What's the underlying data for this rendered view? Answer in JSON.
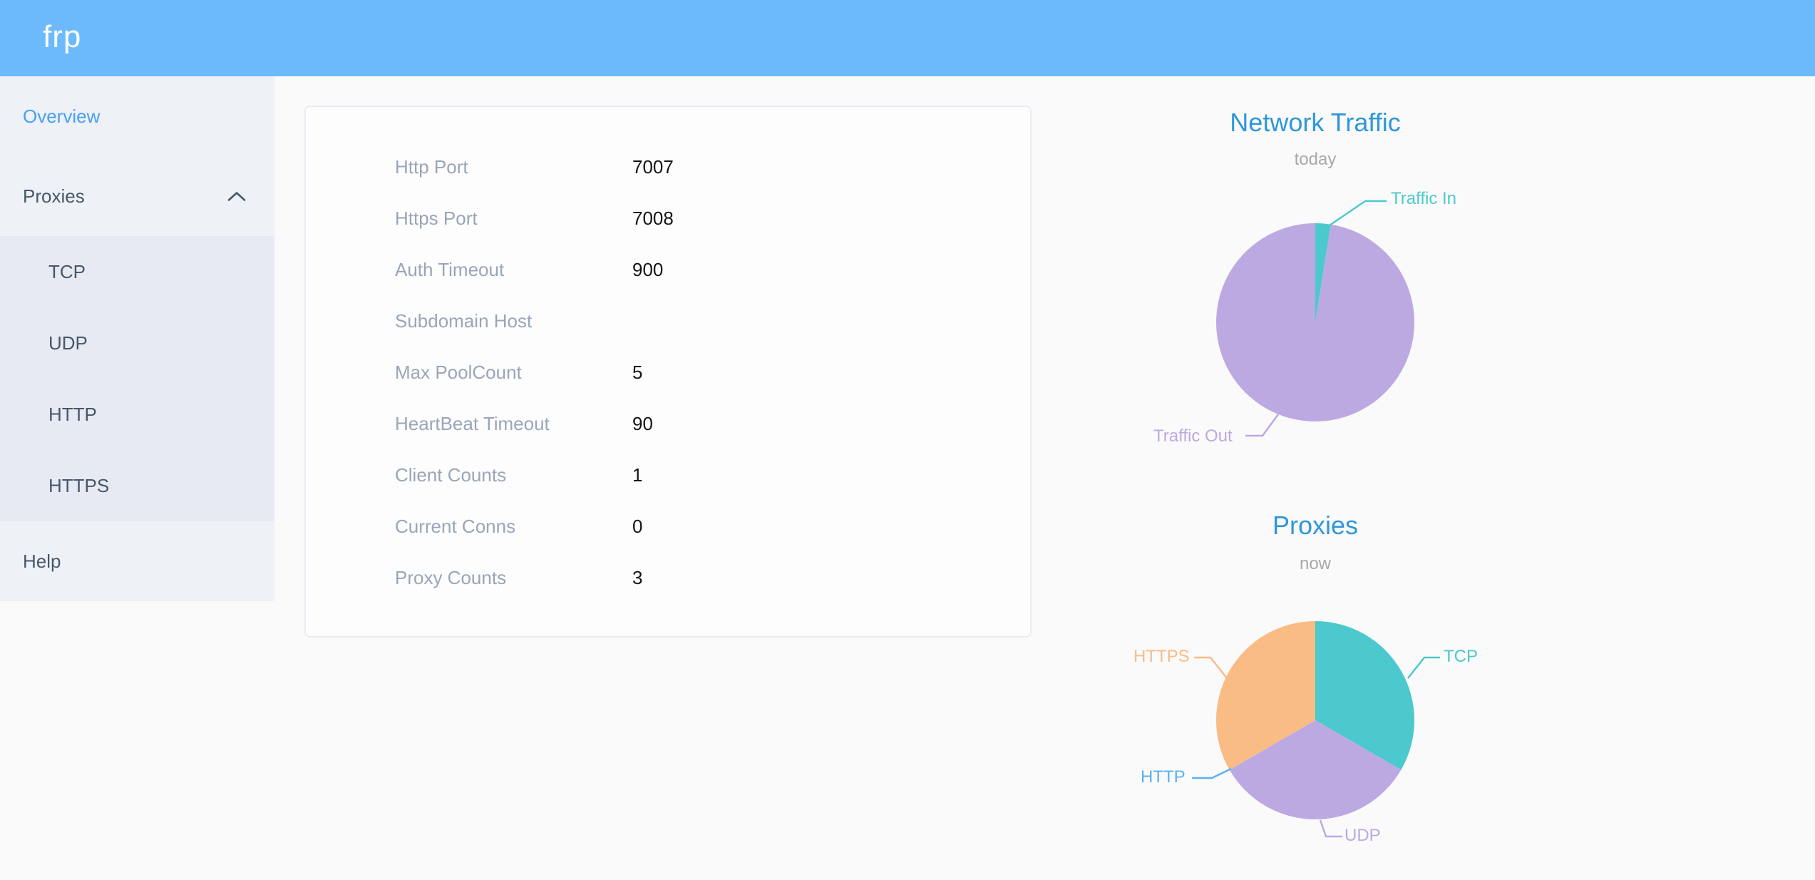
{
  "header": {
    "logo": "frp"
  },
  "sidebar": {
    "items": [
      {
        "label": "Overview",
        "active": true
      },
      {
        "label": "Proxies",
        "active": false,
        "expanded": true
      },
      {
        "label": "Help",
        "active": false
      }
    ],
    "proxies_submenu": [
      "TCP",
      "UDP",
      "HTTP",
      "HTTPS"
    ]
  },
  "overview_card": {
    "rows": [
      {
        "label": "Http Port",
        "value": "7007"
      },
      {
        "label": "Https Port",
        "value": "7008"
      },
      {
        "label": "Auth Timeout",
        "value": "900"
      },
      {
        "label": "Subdomain Host",
        "value": ""
      },
      {
        "label": "Max PoolCount",
        "value": "5"
      },
      {
        "label": "HeartBeat Timeout",
        "value": "90"
      },
      {
        "label": "Client Counts",
        "value": "1"
      },
      {
        "label": "Current Conns",
        "value": "0"
      },
      {
        "label": "Proxy Counts",
        "value": "3"
      }
    ]
  },
  "chart_data": [
    {
      "type": "pie",
      "title": "Network Traffic",
      "subtitle": "today",
      "legend_position": "callout-labels",
      "slices": [
        {
          "label": "Traffic In",
          "value": 2.5,
          "color": "#4bc9cd"
        },
        {
          "label": "Traffic Out",
          "value": 97.5,
          "color": "#bda9e2"
        }
      ]
    },
    {
      "type": "pie",
      "title": "Proxies",
      "subtitle": "now",
      "legend_position": "callout-labels",
      "slices": [
        {
          "label": "TCP",
          "value": 1,
          "color": "#4bc9cd"
        },
        {
          "label": "UDP",
          "value": 1,
          "color": "#bda9e2"
        },
        {
          "label": "HTTP",
          "value": 0,
          "color": "#5ab1ef"
        },
        {
          "label": "HTTPS",
          "value": 1,
          "color": "#f9bc85"
        }
      ]
    }
  ],
  "colors": {
    "header_bg": "#6cbafb",
    "sidebar_bg": "#eef1f6",
    "submenu_bg": "#e7eaf3",
    "sidebar_text": "#48576a",
    "active_link": "#489ff7",
    "content_bg": "#fafafa",
    "card_bg": "#fdfdfe",
    "card_border": "#e9ecf5",
    "label_gray": "#9aa5b8",
    "value_black": "#141416",
    "chart_title_blue": "#2f97d9",
    "chart_subtitle_gray": "#a8a8a8",
    "teal": "#4bc9cd",
    "purple": "#bda9e2",
    "orange": "#f9bc85",
    "blue": "#5ab1ef"
  }
}
